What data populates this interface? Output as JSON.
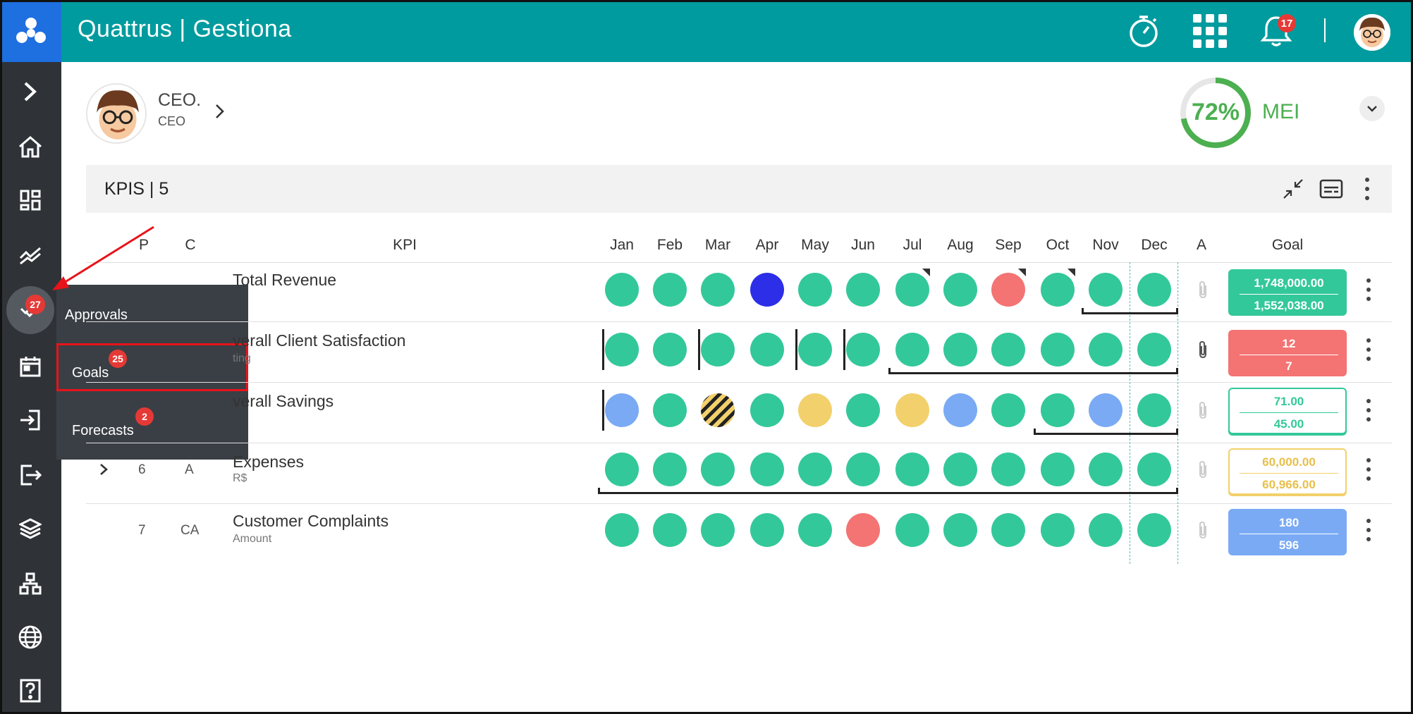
{
  "header": {
    "app_title": "Quattrus | Gestiona",
    "notification_count": "17",
    "icons": [
      "logo-icon",
      "stopwatch-icon",
      "apps-grid-icon",
      "bell-icon",
      "avatar"
    ]
  },
  "sidebar": {
    "icons": [
      "expand-chevron-icon",
      "home-icon",
      "dashboard-icon",
      "trend-icon",
      "approvals-check-icon",
      "calendar-icon",
      "login-icon",
      "logout-icon",
      "layers-icon",
      "org-chart-icon",
      "globe-icon",
      "help-icon"
    ],
    "approvals_badge": "27"
  },
  "flyout": {
    "approvals_label": "Approvals",
    "goals_label": "Goals",
    "goals_badge": "25",
    "forecasts_label": "Forecasts",
    "forecasts_badge": "2"
  },
  "profile": {
    "name": "CEO.",
    "role": "CEO"
  },
  "mei": {
    "percent": "72%",
    "label": "MEI",
    "progress": 0.72,
    "color": "#4caf50"
  },
  "kpis": {
    "title": "KPIS | 5",
    "columns": {
      "p": "P",
      "c": "C",
      "kpi": "KPI",
      "months": [
        "Jan",
        "Feb",
        "Mar",
        "Apr",
        "May",
        "Jun",
        "Jul",
        "Aug",
        "Sep",
        "Oct",
        "Nov",
        "Dec"
      ],
      "a": "A",
      "goal": "Goal"
    },
    "rows": [
      {
        "p": "",
        "c": "",
        "name": "Total Revenue",
        "sub": "",
        "statuses": [
          "green",
          "green",
          "green",
          "blue",
          "green",
          "green",
          "green",
          "green",
          "red",
          "green",
          "green",
          "green"
        ],
        "goal_top": "1,748,000.00",
        "goal_bottom": "1,552,038.00",
        "goal_style": "green-fill"
      },
      {
        "p": "",
        "c": "",
        "name": "verall Client Satisfaction",
        "sub": "ting",
        "statuses": [
          "green",
          "green",
          "green",
          "green",
          "green",
          "green",
          "green",
          "green",
          "green",
          "green",
          "green",
          "green"
        ],
        "goal_top": "12",
        "goal_bottom": "7",
        "goal_style": "red-fill"
      },
      {
        "p": "",
        "c": "",
        "name": "verall Savings",
        "sub": "",
        "statuses": [
          "lightblue",
          "green",
          "striped",
          "green",
          "yellow",
          "green",
          "yellow",
          "lightblue",
          "green",
          "green",
          "lightblue",
          "green"
        ],
        "goal_top": "71.00",
        "goal_bottom": "45.00",
        "goal_style": "green-outline"
      },
      {
        "p": "6",
        "c": "A",
        "name": "Expenses",
        "sub": "R$",
        "statuses": [
          "green",
          "green",
          "green",
          "green",
          "green",
          "green",
          "green",
          "green",
          "green",
          "green",
          "green",
          "green"
        ],
        "goal_top": "60,000.00",
        "goal_bottom": "60,966.00",
        "goal_style": "yellow-outline"
      },
      {
        "p": "7",
        "c": "CA",
        "name": "Customer Complaints",
        "sub": "Amount",
        "statuses": [
          "green",
          "green",
          "green",
          "green",
          "green",
          "red",
          "green",
          "green",
          "green",
          "green",
          "green",
          "green"
        ],
        "goal_top": "180",
        "goal_bottom": "596",
        "goal_style": "blue-fill"
      }
    ]
  },
  "colors": {
    "header": "#009b9e",
    "logo": "#1e6fe0",
    "sidebar": "#2f3338",
    "green": "#33c89a",
    "blue": "#2c2ee8",
    "red": "#f47373",
    "yellow": "#f2d06b",
    "lightblue": "#7aaaf4"
  }
}
